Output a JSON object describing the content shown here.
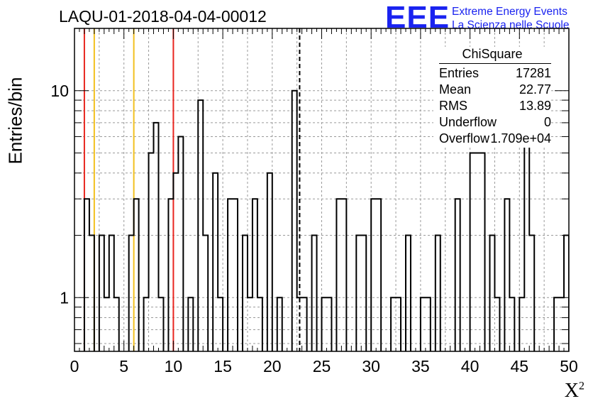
{
  "title": "LAQU-01-2018-04-04-00012",
  "ylabel": "Entries/bin",
  "xlabel": "X",
  "xlabel_exp": "2",
  "logo": {
    "mark": "EEE",
    "line1": "Extreme Energy Events",
    "line2": "La Scienza nelle Scuole",
    "color": "#1a23f0"
  },
  "stats": {
    "title": "ChiSquare",
    "rows": [
      {
        "key": "Entries",
        "value": "17281"
      },
      {
        "key": "Mean",
        "value": "22.77"
      },
      {
        "key": "RMS",
        "value": "13.89"
      },
      {
        "key": "Underflow",
        "value": "0"
      },
      {
        "key": "Overflow",
        "value": "1.709e+04"
      }
    ]
  },
  "chart_data": {
    "type": "histogram",
    "y_scale": "log",
    "xlim": [
      0,
      50
    ],
    "ylim": [
      0.55,
      20
    ],
    "bin_width": 0.5,
    "x_ticks": [
      0,
      5,
      10,
      15,
      20,
      25,
      30,
      35,
      40,
      45,
      50
    ],
    "y_tick_labels": [
      {
        "value": 1,
        "label": "1"
      },
      {
        "value": 10,
        "label": "10"
      }
    ],
    "grid": true,
    "values": [
      0,
      0,
      3,
      2,
      0,
      2,
      1,
      2,
      1,
      0,
      0,
      2,
      3,
      0,
      1,
      5,
      7,
      1,
      0,
      3,
      4,
      6,
      0,
      1,
      0,
      9,
      2,
      0,
      4,
      1,
      0,
      3,
      3,
      0,
      2,
      1,
      3,
      1,
      0,
      4,
      0,
      1,
      0,
      0,
      10,
      1,
      1,
      0,
      2,
      0,
      1,
      1,
      0,
      3,
      3,
      0,
      0,
      2,
      2,
      0,
      3,
      3,
      0,
      0,
      1,
      1,
      0,
      2,
      0,
      0,
      1,
      1,
      0,
      2,
      0,
      0,
      0,
      3,
      0,
      0,
      5,
      5,
      5,
      0,
      2,
      1,
      0,
      3,
      1,
      0,
      1,
      7,
      2,
      0,
      0,
      0,
      0,
      1,
      1,
      2,
      0,
      0,
      0,
      1,
      1,
      1,
      1,
      0,
      2,
      1,
      2,
      0,
      1,
      3,
      0,
      1,
      1,
      0,
      1,
      4,
      2,
      1,
      0,
      1,
      2,
      2,
      0,
      4,
      0,
      1,
      2,
      3,
      0,
      1,
      1,
      1,
      0,
      2,
      0,
      0,
      1,
      2,
      1,
      1,
      1,
      1,
      3,
      0,
      1,
      1,
      4,
      2,
      0,
      3,
      1,
      1,
      0,
      2,
      2,
      2,
      1,
      2,
      1,
      4,
      1,
      3,
      0,
      0,
      1,
      4,
      1,
      1,
      1,
      1,
      3,
      0,
      1,
      2,
      2,
      0,
      0,
      1,
      2,
      2,
      0,
      1,
      4,
      1,
      2,
      4,
      5,
      2,
      0,
      2,
      2,
      0,
      1,
      1,
      0,
      4,
      3,
      1,
      0,
      1,
      2,
      0,
      0,
      3,
      1,
      2,
      0,
      1,
      2,
      2,
      0,
      3,
      2,
      2,
      1,
      3,
      0,
      1,
      1,
      1,
      1,
      0,
      4,
      4,
      8,
      1,
      0,
      1,
      1,
      0,
      3,
      0,
      1,
      2,
      2,
      1,
      1,
      0,
      1,
      0,
      3,
      1,
      1,
      2,
      1,
      0,
      1,
      0,
      2,
      0,
      1
    ],
    "vertical_lines": [
      {
        "x": 1,
        "color": "#e8261f",
        "style": "solid"
      },
      {
        "x": 2,
        "color": "#f2c01e",
        "style": "solid"
      },
      {
        "x": 6,
        "color": "#f2c01e",
        "style": "solid"
      },
      {
        "x": 10,
        "color": "#e8261f",
        "style": "solid"
      },
      {
        "x": 22.77,
        "color": "#000000",
        "style": "dashed"
      }
    ]
  }
}
